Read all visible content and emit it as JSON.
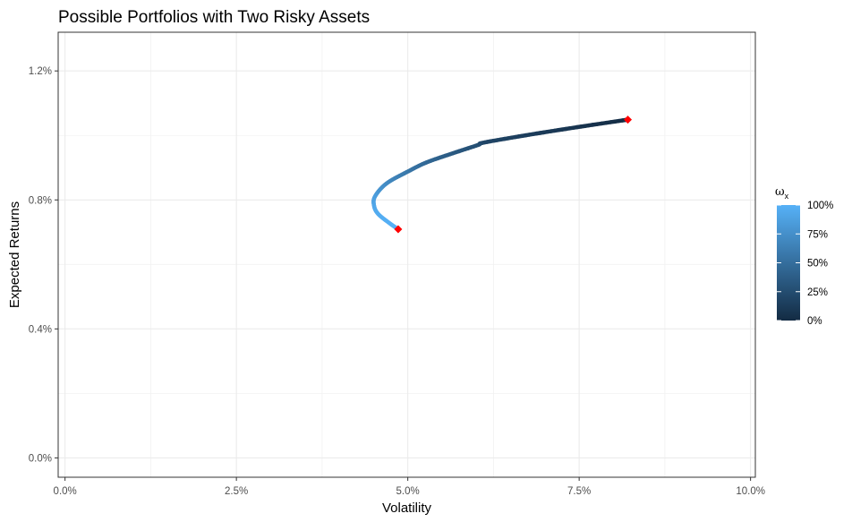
{
  "chart_data": {
    "type": "line",
    "title": "Possible Portfolios with Two Risky Assets",
    "xlabel": "Volatility",
    "ylabel": "Expected Returns",
    "xlim": [
      -0.001,
      0.1007
    ],
    "ylim": [
      -0.0006,
      0.0132
    ],
    "x_ticks": [
      0.0,
      0.025,
      0.05,
      0.075,
      0.1
    ],
    "x_tick_labels": [
      "0.0%",
      "2.5%",
      "5.0%",
      "7.5%",
      "10.0%"
    ],
    "y_ticks": [
      0.0,
      0.004,
      0.008,
      0.012
    ],
    "y_tick_labels": [
      "0.0%",
      "0.4%",
      "0.8%",
      "1.2%"
    ],
    "grid": true,
    "series": [
      {
        "color_by": "weight",
        "points": [
          {
            "x": 0.0821,
            "y": 0.01049,
            "w": 0.0
          },
          {
            "x": 0.0764,
            "y": 0.01031,
            "w": 0.05
          },
          {
            "x": 0.0709,
            "y": 0.01013,
            "w": 0.1
          },
          {
            "x": 0.0657,
            "y": 0.00995,
            "w": 0.15
          },
          {
            "x": 0.0609,
            "y": 0.00977,
            "w": 0.2
          },
          {
            "x": 0.0602,
            "y": 0.0097,
            "w": 0.25
          },
          {
            "x": 0.0562,
            "y": 0.00942,
            "w": 0.35
          },
          {
            "x": 0.0527,
            "y": 0.00916,
            "w": 0.45
          },
          {
            "x": 0.0501,
            "y": 0.00889,
            "w": 0.55
          },
          {
            "x": 0.0469,
            "y": 0.00851,
            "w": 0.7
          },
          {
            "x": 0.0452,
            "y": 0.0081,
            "w": 0.85
          },
          {
            "x": 0.0451,
            "y": 0.0078,
            "w": 0.92
          },
          {
            "x": 0.0457,
            "y": 0.00756,
            "w": 0.96
          },
          {
            "x": 0.0472,
            "y": 0.0073,
            "w": 0.985
          },
          {
            "x": 0.0486,
            "y": 0.00709,
            "w": 1.0
          }
        ]
      }
    ],
    "endpoints": [
      {
        "x": 0.0486,
        "y": 0.00709
      },
      {
        "x": 0.0821,
        "y": 0.01049
      }
    ],
    "endpoint_color": "#ff0000",
    "legend": {
      "title": "ω",
      "subscript": "x",
      "position": "right",
      "labels": [
        "100%",
        "75%",
        "50%",
        "25%",
        "0%"
      ],
      "values": [
        1.0,
        0.75,
        0.5,
        0.25,
        0.0
      ],
      "color_low": "#132b43",
      "color_high": "#56b1f7"
    }
  }
}
